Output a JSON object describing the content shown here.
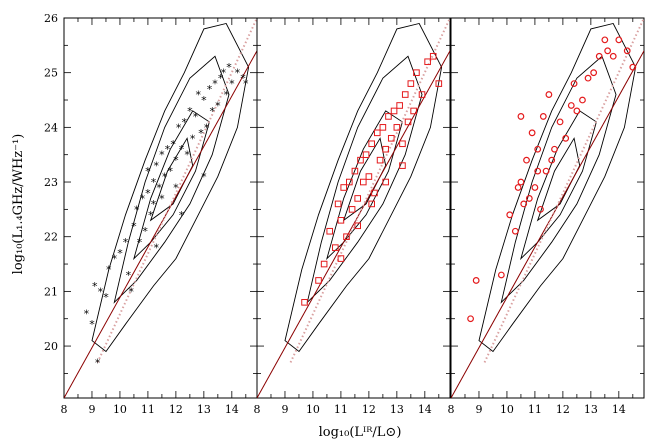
{
  "chart_data": {
    "type": "scatter",
    "layout": "three side-by-side panels sharing the y axis",
    "xlabel": "log₁₀(Lᴵᴿ/L⊙)",
    "ylabel": "log₁₀(L₁.₄GHz/WHz⁻¹)",
    "x_ticks": [
      8,
      9,
      10,
      11,
      12,
      13,
      14
    ],
    "y_ticks": [
      20,
      21,
      22,
      23,
      24,
      25,
      26
    ],
    "xlim": [
      8,
      14.9
    ],
    "ylim": [
      19.05,
      26
    ],
    "grid": false,
    "legend": "none",
    "colors": {
      "panel1_points": "#000000",
      "panel2_points": "#e41a1c",
      "panel3_points": "#e41a1c",
      "fit_line": "#8b0000",
      "ref_line": "#d9a0a0",
      "contours": "#000000"
    },
    "lines": {
      "solid_fit": {
        "x": [
          8,
          14.9
        ],
        "y": [
          19.05,
          25.4
        ]
      },
      "dotted_reference": {
        "x": [
          9.2,
          14.9
        ],
        "y": [
          19.7,
          26.0
        ]
      }
    },
    "panels": [
      {
        "marker": "star",
        "series": [
          {
            "x": [
              8.8,
              9.0,
              9.2,
              9.3,
              9.5,
              9.6,
              9.8,
              10.0,
              10.2,
              10.3,
              10.5,
              10.6,
              10.7,
              10.8,
              10.9,
              11.0,
              11.0,
              11.1,
              11.2,
              11.2,
              11.3,
              11.4,
              11.5,
              11.5,
              11.6,
              11.7,
              11.8,
              11.9,
              12.0,
              12.0,
              12.1,
              12.2,
              12.3,
              12.4,
              12.5,
              12.6,
              12.7,
              12.8,
              12.9,
              13.0,
              13.1,
              13.2,
              13.3,
              13.4,
              13.5,
              13.6,
              13.7,
              13.8,
              13.9,
              14.0,
              14.2,
              14.4,
              14.5,
              9.1,
              10.4,
              11.3,
              12.2,
              13.0
            ],
            "y": [
              20.6,
              20.4,
              19.7,
              21.0,
              20.9,
              21.4,
              21.6,
              21.7,
              21.9,
              21.3,
              22.2,
              22.5,
              21.9,
              22.7,
              22.1,
              22.8,
              23.2,
              22.4,
              23.0,
              22.6,
              23.3,
              22.9,
              23.5,
              22.7,
              23.1,
              23.6,
              23.2,
              23.7,
              23.4,
              22.9,
              24.0,
              23.6,
              24.1,
              23.5,
              24.3,
              23.8,
              24.2,
              24.6,
              23.9,
              24.5,
              24.0,
              24.7,
              24.3,
              24.8,
              24.4,
              24.9,
              25.0,
              24.6,
              25.1,
              24.8,
              25.0,
              24.9,
              24.8,
              21.1,
              21.0,
              21.8,
              22.4,
              23.1
            ]
          }
        ]
      },
      {
        "marker": "open-square",
        "series": [
          {
            "x": [
              9.7,
              10.2,
              10.4,
              10.6,
              10.8,
              10.9,
              11.0,
              11.1,
              11.2,
              11.3,
              11.4,
              11.5,
              11.6,
              11.7,
              11.8,
              11.9,
              12.0,
              12.1,
              12.2,
              12.3,
              12.4,
              12.5,
              12.6,
              12.7,
              12.8,
              12.9,
              13.0,
              13.1,
              13.2,
              13.3,
              13.4,
              13.5,
              13.6,
              13.7,
              13.9,
              14.1,
              14.3,
              14.5,
              11.0,
              11.6,
              12.1,
              12.6,
              13.2
            ],
            "y": [
              20.8,
              21.2,
              21.5,
              22.1,
              21.8,
              22.6,
              22.3,
              22.9,
              22.0,
              23.0,
              22.5,
              23.2,
              22.7,
              23.4,
              23.0,
              23.5,
              23.1,
              23.7,
              22.8,
              23.9,
              23.4,
              24.0,
              23.6,
              24.2,
              23.8,
              24.3,
              24.0,
              24.4,
              23.7,
              24.6,
              24.1,
              24.8,
              24.3,
              25.0,
              24.6,
              25.2,
              25.3,
              24.8,
              21.6,
              22.2,
              22.6,
              23.0,
              23.3
            ]
          }
        ]
      },
      {
        "marker": "open-circle",
        "series": [
          {
            "x": [
              8.7,
              8.9,
              9.8,
              10.1,
              10.3,
              10.4,
              10.5,
              10.6,
              10.7,
              10.8,
              10.9,
              11.0,
              11.1,
              11.2,
              11.3,
              11.4,
              11.5,
              11.7,
              11.9,
              12.1,
              12.3,
              12.5,
              12.7,
              12.9,
              13.1,
              13.3,
              13.5,
              13.6,
              13.8,
              14.0,
              14.3,
              14.5,
              10.5,
              11.1,
              11.6,
              12.4
            ],
            "y": [
              20.5,
              21.2,
              21.3,
              22.4,
              22.1,
              22.9,
              24.2,
              22.6,
              23.4,
              22.7,
              23.9,
              22.9,
              23.6,
              22.5,
              24.2,
              23.2,
              24.6,
              23.6,
              24.1,
              23.8,
              24.4,
              24.3,
              24.5,
              24.9,
              25.0,
              25.3,
              25.6,
              25.4,
              25.3,
              25.6,
              25.4,
              25.1,
              23.0,
              23.2,
              23.4,
              24.8
            ]
          }
        ]
      }
    ]
  }
}
